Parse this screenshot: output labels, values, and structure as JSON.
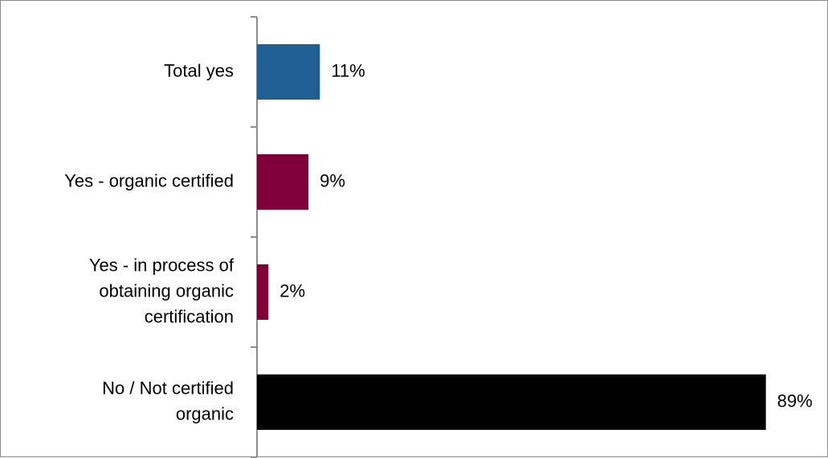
{
  "chart_data": {
    "type": "bar",
    "orientation": "horizontal",
    "categories": [
      [
        "Total yes"
      ],
      [
        "Yes - organic certified"
      ],
      [
        "Yes - in process of",
        "obtaining organic",
        "certification"
      ],
      [
        "No / Not certified",
        "organic"
      ]
    ],
    "values": [
      11,
      9,
      2,
      89
    ],
    "value_labels": [
      "11%",
      "9%",
      "2%",
      "89%"
    ],
    "colors": [
      "#1f5f93",
      "#7f0038",
      "#7f0038",
      "#000000"
    ],
    "xlim": [
      0,
      100
    ],
    "title": "",
    "xlabel": "",
    "ylabel": "",
    "grid": false,
    "legend": "none"
  }
}
